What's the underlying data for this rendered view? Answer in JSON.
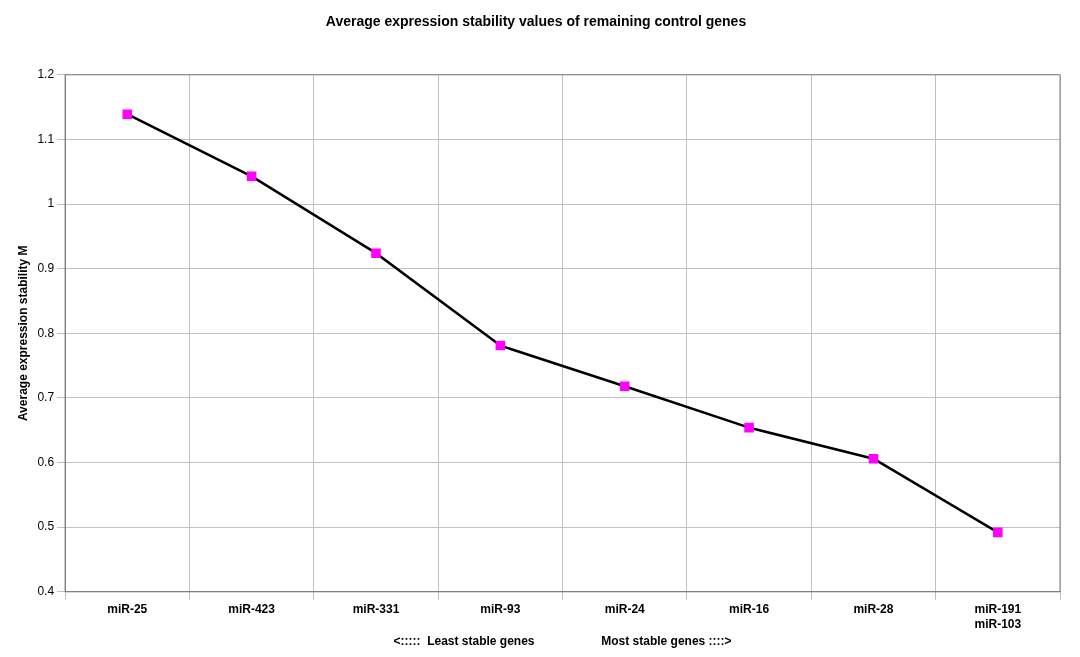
{
  "chart_data": {
    "type": "line",
    "title": "Average expression stability values of remaining control genes",
    "ylabel": "Average expression stability M",
    "xlabel": "<:::::  Least stable genes                    Most stable genes ::::>",
    "categories": [
      "miR-25",
      "miR-423",
      "miR-331",
      "miR-93",
      "miR-24",
      "miR-16",
      "miR-28",
      "miR-191\nmiR-103"
    ],
    "series": [
      {
        "color": "#000000",
        "colors": [
          "#ff00ff",
          "#ff00ff",
          "#ff00ff",
          "#ff00ff",
          "#ff00ff",
          "#ff00ff",
          "#ff00ff",
          "#ff00ff"
        ],
        "values": [
          1.139,
          1.043,
          0.924,
          0.781,
          0.718,
          0.654,
          0.606,
          0.492
        ]
      }
    ],
    "ylim": [
      0.4,
      1.2
    ],
    "yticks": [
      0.4,
      0.5,
      0.6,
      0.7,
      0.8,
      0.9,
      1,
      1.1,
      1.2
    ],
    "grid": true,
    "marker": "square",
    "line_style": "solid"
  }
}
